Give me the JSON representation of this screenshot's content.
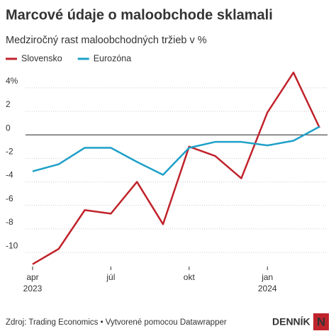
{
  "chart_data": {
    "type": "line",
    "title": "Marcové údaje o maloobchode sklamali",
    "subtitle": "Medziročný rast maloobchodných tržieb v %",
    "categories": [
      "apr",
      null,
      null,
      "júl",
      null,
      null,
      "okt",
      null,
      null,
      "jan",
      null,
      null
    ],
    "category_sublabels": [
      "2023",
      null,
      null,
      null,
      null,
      null,
      null,
      null,
      null,
      "2024",
      null,
      null
    ],
    "series": [
      {
        "name": "Slovensko",
        "color": "#c0232b",
        "values": [
          -11.0,
          -9.7,
          -6.4,
          -6.7,
          -4.0,
          -7.6,
          -1.0,
          -1.8,
          -3.7,
          1.9,
          5.3,
          0.6
        ]
      },
      {
        "name": "Eurozóna",
        "color": "#1ea0c8",
        "values": [
          -3.1,
          -2.5,
          -1.1,
          -1.1,
          -2.3,
          -3.4,
          -1.1,
          -0.6,
          -0.6,
          -0.9,
          -0.5,
          0.7
        ]
      }
    ],
    "ylim": [
      -11.2,
      5.5
    ],
    "yticks": [
      {
        "value": 4,
        "label": "4%"
      },
      2,
      0,
      -2,
      -4,
      -6,
      -8,
      -10
    ],
    "grid": true,
    "zero_line": true,
    "legend": "top-left",
    "source": "Zdroj: Trading Economics • Vytvorené pomocou Datawrapper",
    "logo": "DENNÍK",
    "logo_mark": "N"
  }
}
